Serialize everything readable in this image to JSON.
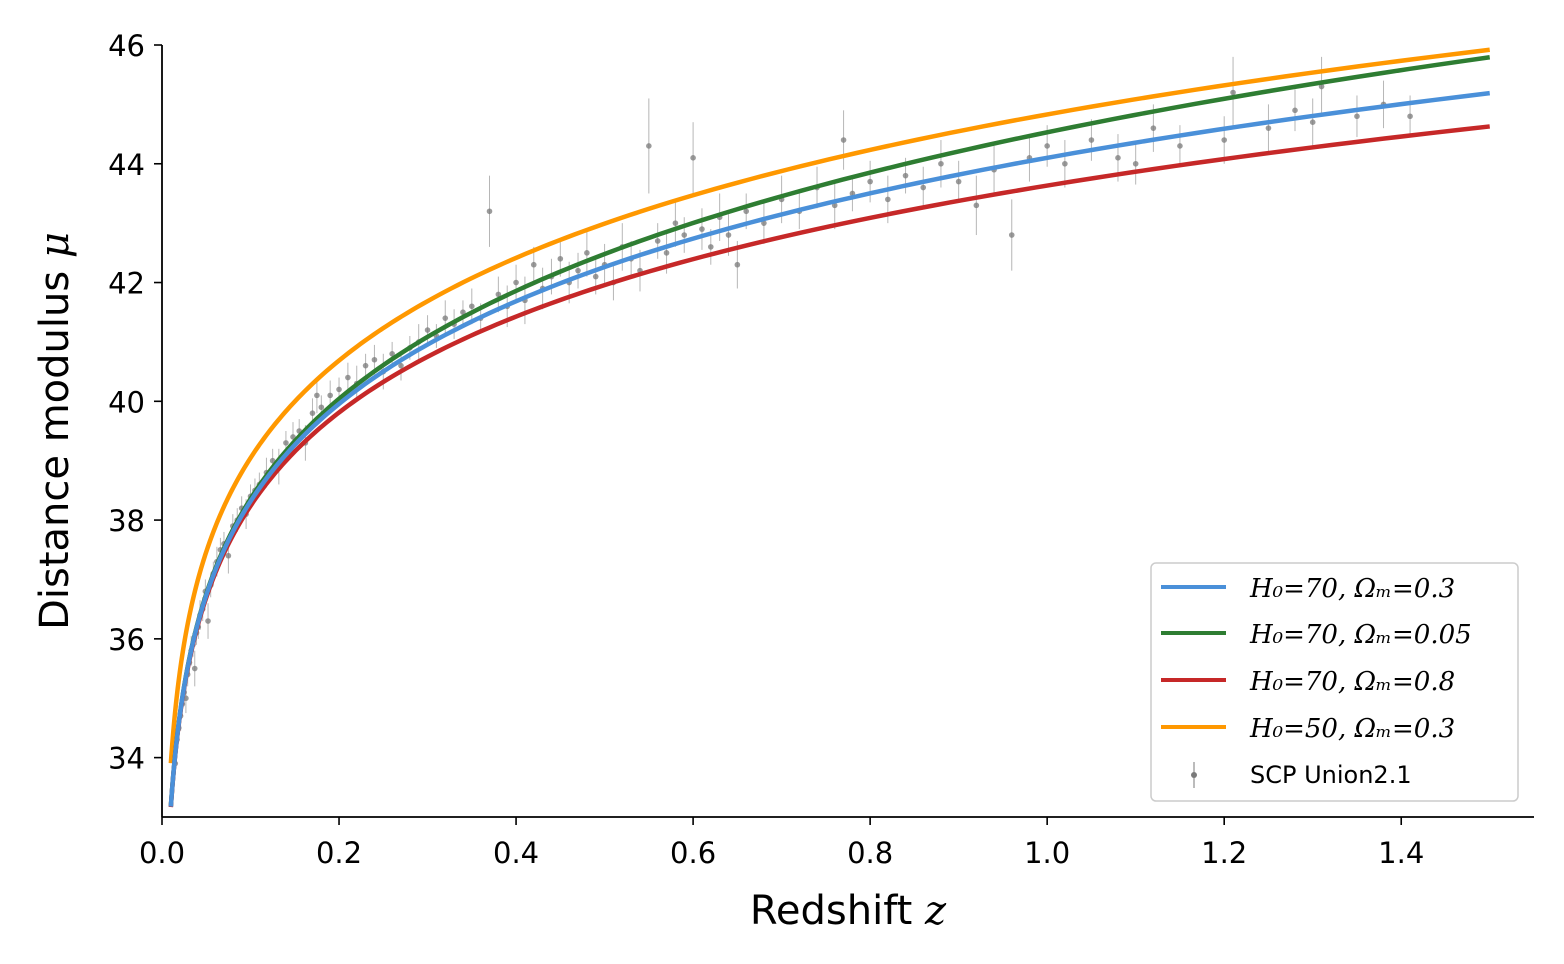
{
  "chart_data": {
    "type": "line",
    "title": "",
    "xlabel": "Redshift",
    "xlabel_var": "z",
    "ylabel": "Distance modulus",
    "ylabel_var": "μ",
    "xlim": [
      0.0,
      1.55
    ],
    "ylim": [
      33.0,
      46.0
    ],
    "xticks": [
      0.0,
      0.2,
      0.4,
      0.6,
      0.8,
      1.0,
      1.2,
      1.4
    ],
    "xtick_labels": [
      "0.0",
      "0.2",
      "0.4",
      "0.6",
      "0.8",
      "1.0",
      "1.2",
      "1.4"
    ],
    "yticks": [
      34,
      36,
      38,
      40,
      42,
      44,
      46
    ],
    "ytick_labels": [
      "34",
      "36",
      "38",
      "40",
      "42",
      "44",
      "46"
    ],
    "grid": false,
    "legend_position": "lower-right",
    "z_range": [
      0.01,
      1.5
    ],
    "series": [
      {
        "name": "H₀=70, Ωₘ=0.3",
        "H0": 70,
        "Om": 0.3,
        "color": "#4a90d9",
        "sample_z": [
          0.01,
          0.1,
          0.5,
          1.0,
          1.5
        ],
        "sample_mu": [
          33.2,
          38.3,
          42.3,
          44.1,
          45.2
        ]
      },
      {
        "name": "H₀=70, Ωₘ=0.05",
        "H0": 70,
        "Om": 0.05,
        "color": "#2e7d32",
        "sample_z": [
          0.01,
          0.1,
          0.5,
          1.0,
          1.5
        ],
        "sample_mu": [
          33.2,
          38.3,
          42.5,
          44.5,
          45.8
        ]
      },
      {
        "name": "H₀=70, Ωₘ=0.8",
        "H0": 70,
        "Om": 0.8,
        "color": "#c62828",
        "sample_z": [
          0.01,
          0.1,
          0.5,
          1.0,
          1.5
        ],
        "sample_mu": [
          33.2,
          38.2,
          41.9,
          43.6,
          44.6
        ]
      },
      {
        "name": "H₀=50, Ωₘ=0.3",
        "H0": 50,
        "Om": 0.3,
        "color": "#ff9800",
        "sample_z": [
          0.01,
          0.1,
          0.5,
          1.0,
          1.5
        ],
        "sample_mu": [
          33.9,
          39.1,
          43.0,
          44.8,
          45.9
        ]
      }
    ],
    "scatter": {
      "name": "SCP Union2.1",
      "color": "#7a7a7a",
      "points": [
        [
          0.015,
          33.9,
          0.2
        ],
        [
          0.017,
          34.3,
          0.2
        ],
        [
          0.019,
          34.5,
          0.2
        ],
        [
          0.021,
          34.7,
          0.25
        ],
        [
          0.023,
          34.9,
          0.2
        ],
        [
          0.025,
          35.1,
          0.2
        ],
        [
          0.027,
          35.0,
          0.25
        ],
        [
          0.029,
          35.4,
          0.2
        ],
        [
          0.031,
          35.6,
          0.2
        ],
        [
          0.033,
          35.8,
          0.25
        ],
        [
          0.035,
          35.9,
          0.2
        ],
        [
          0.037,
          35.5,
          0.3
        ],
        [
          0.039,
          36.1,
          0.2
        ],
        [
          0.041,
          36.2,
          0.2
        ],
        [
          0.043,
          36.4,
          0.25
        ],
        [
          0.046,
          36.5,
          0.2
        ],
        [
          0.049,
          36.8,
          0.2
        ],
        [
          0.052,
          36.3,
          0.3
        ],
        [
          0.055,
          36.9,
          0.2
        ],
        [
          0.058,
          37.1,
          0.2
        ],
        [
          0.062,
          37.3,
          0.25
        ],
        [
          0.066,
          37.5,
          0.2
        ],
        [
          0.07,
          37.6,
          0.2
        ],
        [
          0.075,
          37.4,
          0.3
        ],
        [
          0.08,
          37.9,
          0.2
        ],
        [
          0.085,
          38.0,
          0.2
        ],
        [
          0.09,
          38.2,
          0.2
        ],
        [
          0.095,
          38.1,
          0.25
        ],
        [
          0.1,
          38.4,
          0.2
        ],
        [
          0.105,
          38.5,
          0.2
        ],
        [
          0.11,
          38.6,
          0.2
        ],
        [
          0.118,
          38.8,
          0.25
        ],
        [
          0.125,
          39.0,
          0.2
        ],
        [
          0.132,
          38.9,
          0.3
        ],
        [
          0.14,
          39.3,
          0.2
        ],
        [
          0.148,
          39.4,
          0.25
        ],
        [
          0.155,
          39.5,
          0.2
        ],
        [
          0.162,
          39.3,
          0.3
        ],
        [
          0.17,
          39.8,
          0.25
        ],
        [
          0.175,
          40.1,
          0.3
        ],
        [
          0.18,
          39.9,
          0.2
        ],
        [
          0.19,
          40.1,
          0.25
        ],
        [
          0.2,
          40.2,
          0.2
        ],
        [
          0.21,
          40.4,
          0.25
        ],
        [
          0.22,
          40.3,
          0.3
        ],
        [
          0.23,
          40.6,
          0.2
        ],
        [
          0.24,
          40.7,
          0.25
        ],
        [
          0.25,
          40.5,
          0.3
        ],
        [
          0.26,
          40.8,
          0.2
        ],
        [
          0.27,
          40.6,
          0.25
        ],
        [
          0.28,
          40.9,
          0.2
        ],
        [
          0.29,
          41.0,
          0.3
        ],
        [
          0.3,
          41.2,
          0.25
        ],
        [
          0.31,
          41.1,
          0.2
        ],
        [
          0.32,
          41.4,
          0.3
        ],
        [
          0.33,
          41.3,
          0.25
        ],
        [
          0.34,
          41.5,
          0.2
        ],
        [
          0.35,
          41.6,
          0.3
        ],
        [
          0.36,
          41.4,
          0.25
        ],
        [
          0.37,
          43.2,
          0.6
        ],
        [
          0.38,
          41.8,
          0.3
        ],
        [
          0.39,
          41.6,
          0.35
        ],
        [
          0.4,
          42.0,
          0.3
        ],
        [
          0.41,
          41.7,
          0.4
        ],
        [
          0.42,
          42.3,
          0.3
        ],
        [
          0.43,
          41.9,
          0.35
        ],
        [
          0.44,
          42.1,
          0.3
        ],
        [
          0.45,
          42.4,
          0.3
        ],
        [
          0.46,
          42.0,
          0.35
        ],
        [
          0.47,
          42.2,
          0.3
        ],
        [
          0.48,
          42.5,
          0.4
        ],
        [
          0.49,
          42.1,
          0.3
        ],
        [
          0.5,
          42.3,
          0.35
        ],
        [
          0.51,
          42.0,
          0.3
        ],
        [
          0.52,
          42.6,
          0.4
        ],
        [
          0.53,
          42.4,
          0.3
        ],
        [
          0.54,
          42.2,
          0.35
        ],
        [
          0.55,
          44.3,
          0.8
        ],
        [
          0.56,
          42.7,
          0.3
        ],
        [
          0.57,
          42.5,
          0.35
        ],
        [
          0.58,
          43.0,
          0.4
        ],
        [
          0.59,
          42.8,
          0.3
        ],
        [
          0.6,
          44.1,
          0.6
        ],
        [
          0.61,
          42.9,
          0.35
        ],
        [
          0.62,
          42.6,
          0.3
        ],
        [
          0.63,
          43.1,
          0.4
        ],
        [
          0.64,
          42.8,
          0.35
        ],
        [
          0.65,
          42.3,
          0.4
        ],
        [
          0.66,
          43.2,
          0.3
        ],
        [
          0.68,
          43.0,
          0.35
        ],
        [
          0.7,
          43.4,
          0.4
        ],
        [
          0.72,
          43.2,
          0.3
        ],
        [
          0.74,
          43.6,
          0.35
        ],
        [
          0.76,
          43.3,
          0.4
        ],
        [
          0.77,
          44.4,
          0.5
        ],
        [
          0.78,
          43.5,
          0.3
        ],
        [
          0.8,
          43.7,
          0.35
        ],
        [
          0.82,
          43.4,
          0.4
        ],
        [
          0.84,
          43.8,
          0.3
        ],
        [
          0.86,
          43.6,
          0.35
        ],
        [
          0.88,
          44.0,
          0.4
        ],
        [
          0.9,
          43.7,
          0.35
        ],
        [
          0.92,
          43.3,
          0.5
        ],
        [
          0.94,
          43.9,
          0.4
        ],
        [
          0.96,
          42.8,
          0.6
        ],
        [
          0.98,
          44.1,
          0.4
        ],
        [
          1.0,
          44.3,
          0.35
        ],
        [
          1.02,
          44.0,
          0.4
        ],
        [
          1.05,
          44.4,
          0.35
        ],
        [
          1.08,
          44.1,
          0.4
        ],
        [
          1.1,
          44.0,
          0.35
        ],
        [
          1.12,
          44.6,
          0.4
        ],
        [
          1.15,
          44.3,
          0.35
        ],
        [
          1.2,
          44.4,
          0.4
        ],
        [
          1.21,
          45.2,
          0.6
        ],
        [
          1.25,
          44.6,
          0.4
        ],
        [
          1.28,
          44.9,
          0.35
        ],
        [
          1.3,
          44.7,
          0.4
        ],
        [
          1.31,
          45.3,
          0.5
        ],
        [
          1.35,
          44.8,
          0.35
        ],
        [
          1.38,
          45.0,
          0.4
        ],
        [
          1.41,
          44.8,
          0.35
        ]
      ]
    }
  }
}
